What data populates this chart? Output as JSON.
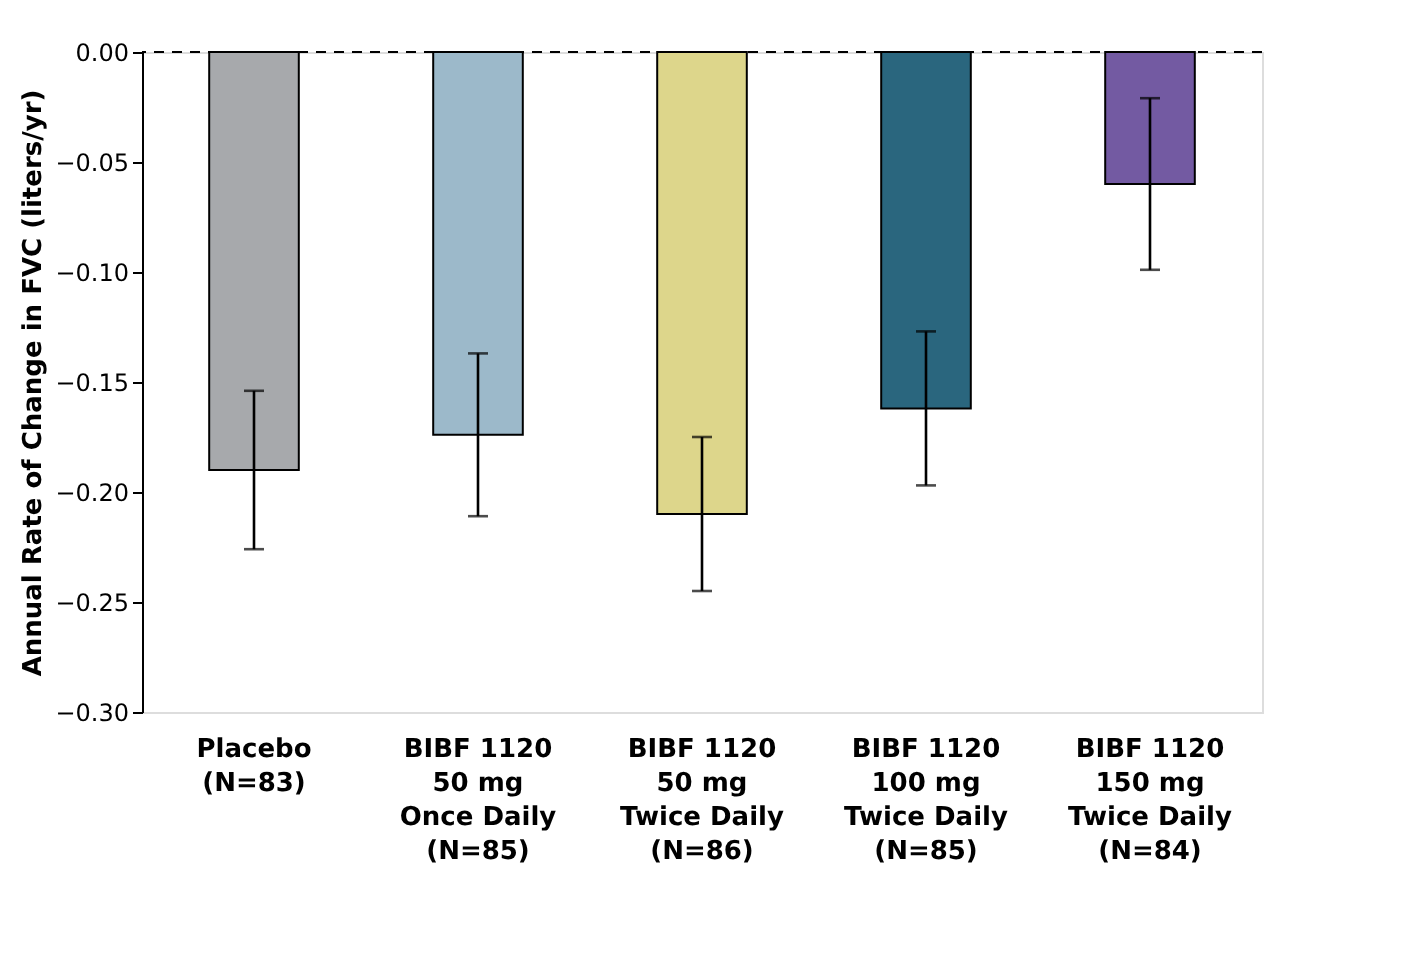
{
  "chart_data": {
    "type": "bar",
    "ylabel": "Annual Rate of Change in FVC (liters/yr)",
    "categories": [
      "Placebo\n(N=83)",
      "BIBF 1120\n50 mg\nOnce Daily\n(N=85)",
      "BIBF 1120\n50 mg\nTwice Daily\n(N=86)",
      "BIBF 1120\n100 mg\nTwice Daily\n(N=85)",
      "BIBF 1120\n150 mg\nTwice Daily\n(N=84)"
    ],
    "values": [
      -0.19,
      -0.174,
      -0.21,
      -0.162,
      -0.06
    ],
    "colors": [
      "#a7a9ac",
      "#9cb9ca",
      "#ddd68b",
      "#2a667e",
      "#735aa2"
    ],
    "errors": [
      [
        -0.226,
        -0.154
      ],
      [
        -0.211,
        -0.137
      ],
      [
        -0.245,
        -0.175
      ],
      [
        -0.197,
        -0.127
      ],
      [
        -0.099,
        -0.021
      ]
    ],
    "ylim": [
      -0.3,
      0.0
    ],
    "yticks": [
      {
        "value": 0,
        "label": "0.00"
      },
      {
        "value": -0.05,
        "label": "−0.05"
      },
      {
        "value": -0.1,
        "label": "−0.10"
      },
      {
        "value": -0.15,
        "label": "−0.15"
      },
      {
        "value": -0.2,
        "label": "−0.20"
      },
      {
        "value": -0.25,
        "label": "−0.25"
      },
      {
        "value": -0.3,
        "label": "−0.30"
      }
    ],
    "ref_lines": [
      {
        "axis": "y",
        "value": 0,
        "label": null,
        "line_style": "dashed"
      }
    ],
    "grid": false
  }
}
